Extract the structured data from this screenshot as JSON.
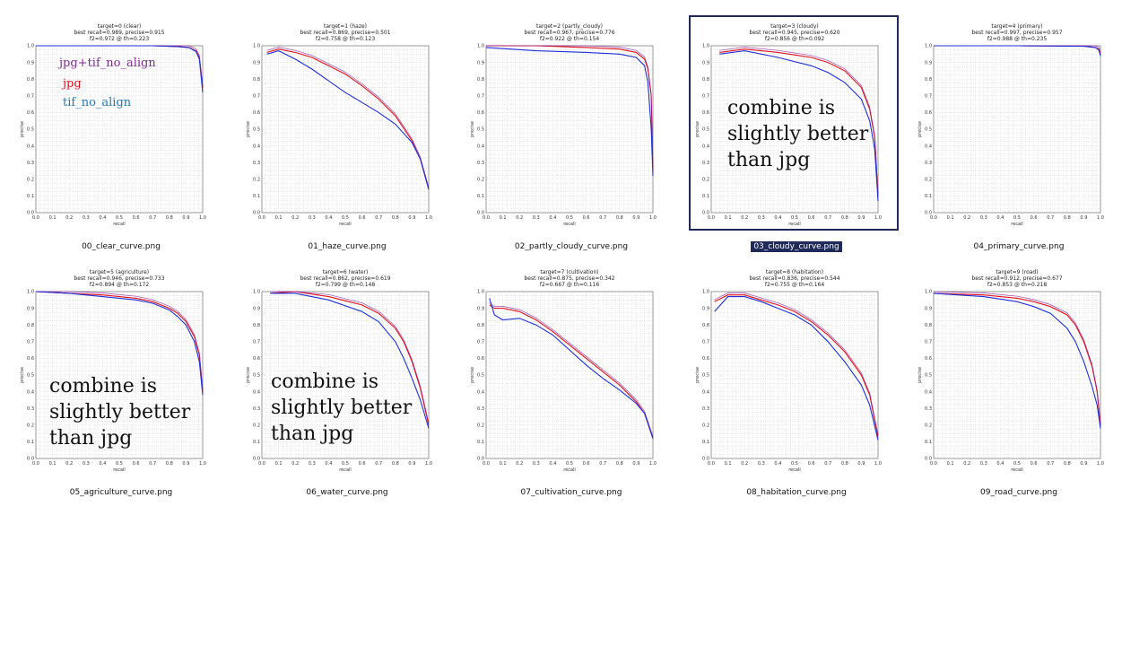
{
  "colors": {
    "jpg": "#e0111c",
    "tif": "#1c2fd8",
    "combined": "#8b1d9a"
  },
  "legend": [
    {
      "label": "jpg+tif_no_align",
      "color": "#7b2d8e"
    },
    {
      "label": "jpg",
      "color": "#e0111c"
    },
    {
      "label": "tif_no_align",
      "color": "#1f77b4"
    }
  ],
  "notes": {
    "n1": "combine is\nslightly better\nthan jpg",
    "n2": "combine is\nslightly better\nthan jpg",
    "n3": "combine is\nslightly better\nthan jpg"
  },
  "tiles": [
    {
      "file": "00_clear_curve.png",
      "title": "target=0 (clear)",
      "line2": "best recall=0.989, precise=0.915",
      "line3": "f2=0.972 @ th=0.223",
      "selected": false
    },
    {
      "file": "01_haze_curve.png",
      "title": "target=1 (haze)",
      "line2": "best recall=0.869, precise=0.501",
      "line3": "f2=0.758 @ th=0.123",
      "selected": false
    },
    {
      "file": "02_partly_cloudy_curve.png",
      "title": "target=2 (partly_cloudy)",
      "line2": "best recall=0.967, precise=0.776",
      "line3": "f2=0.922 @ th=0.154",
      "selected": false
    },
    {
      "file": "03_cloudy_curve.png",
      "title": "target=3 (cloudy)",
      "line2": "best recall=0.945, precise=0.620",
      "line3": "f2=0.856 @ th=0.092",
      "selected": true
    },
    {
      "file": "04_primary_curve.png",
      "title": "target=4 (primary)",
      "line2": "best recall=0.997, precise=0.957",
      "line3": "f2=0.988 @ th=0.235",
      "selected": false
    },
    {
      "file": "05_agriculture_curve.png",
      "title": "target=5 (agriculture)",
      "line2": "best recall=0.946, precise=0.733",
      "line3": "f2=0.894 @ th=0.172",
      "selected": false
    },
    {
      "file": "06_water_curve.png",
      "title": "target=6 (water)",
      "line2": "best recall=0.862, precise=0.619",
      "line3": "f2=0.799 @ th=0.148",
      "selected": false
    },
    {
      "file": "07_cultivation_curve.png",
      "title": "target=7 (cultivation)",
      "line2": "best recall=0.875, precise=0.342",
      "line3": "f2=0.667 @ th=0.116",
      "selected": false
    },
    {
      "file": "08_habitation_curve.png",
      "title": "target=8 (habitation)",
      "line2": "best recall=0.836, precise=0.544",
      "line3": "f2=0.755 @ th=0.164",
      "selected": false
    },
    {
      "file": "09_road_curve.png",
      "title": "target=9 (road)",
      "line2": "best recall=0.912, precise=0.677",
      "line3": "f2=0.853 @ th=0.218",
      "selected": false
    }
  ],
  "axis": {
    "xlabel": "recall",
    "ylabel": "precise",
    "ticks": [
      "0.0",
      "0.1",
      "0.2",
      "0.3",
      "0.4",
      "0.5",
      "0.6",
      "0.7",
      "0.8",
      "0.9",
      "1.0"
    ]
  },
  "chart_data": [
    {
      "type": "line",
      "title": "target=0 (clear)",
      "xlabel": "recall",
      "ylabel": "precise",
      "xlim": [
        0,
        1
      ],
      "ylim": [
        0,
        1
      ],
      "grid": true,
      "series": [
        {
          "values_x": [
            0,
            0.4,
            0.7,
            0.85,
            0.92,
            0.96,
            0.98,
            1.0
          ],
          "values_y": [
            1,
            1,
            1,
            0.995,
            0.99,
            0.97,
            0.93,
            0.75
          ],
          "color": "red"
        },
        {
          "values_x": [
            0,
            0.4,
            0.7,
            0.85,
            0.92,
            0.96,
            0.98,
            1.0
          ],
          "values_y": [
            1,
            1,
            1,
            0.995,
            0.988,
            0.965,
            0.92,
            0.72
          ],
          "color": "blue"
        }
      ]
    },
    {
      "type": "line",
      "title": "target=1 (haze)",
      "xlabel": "recall",
      "ylabel": "precise",
      "xlim": [
        0,
        1
      ],
      "ylim": [
        0,
        1
      ],
      "grid": true,
      "series": [
        {
          "values_x": [
            0.03,
            0.1,
            0.2,
            0.3,
            0.4,
            0.5,
            0.6,
            0.7,
            0.8,
            0.9,
            0.95,
            1.0
          ],
          "values_y": [
            0.96,
            0.98,
            0.96,
            0.93,
            0.88,
            0.83,
            0.76,
            0.68,
            0.58,
            0.43,
            0.32,
            0.14
          ],
          "color": "red"
        },
        {
          "values_x": [
            0.03,
            0.1,
            0.2,
            0.3,
            0.4,
            0.5,
            0.6,
            0.7,
            0.8,
            0.9,
            0.95,
            1.0
          ],
          "values_y": [
            0.95,
            0.97,
            0.92,
            0.86,
            0.79,
            0.72,
            0.66,
            0.6,
            0.53,
            0.42,
            0.32,
            0.14
          ],
          "color": "blue"
        }
      ]
    },
    {
      "type": "line",
      "title": "target=2 (partly_cloudy)",
      "xlabel": "recall",
      "ylabel": "precise",
      "xlim": [
        0,
        1
      ],
      "ylim": [
        0,
        1
      ],
      "grid": true,
      "series": [
        {
          "values_x": [
            0,
            0.3,
            0.6,
            0.8,
            0.9,
            0.95,
            0.97,
            0.99,
            1.0
          ],
          "values_y": [
            1,
            1,
            0.99,
            0.98,
            0.96,
            0.92,
            0.86,
            0.7,
            0.25
          ],
          "color": "red"
        },
        {
          "values_x": [
            0,
            0.3,
            0.6,
            0.8,
            0.9,
            0.95,
            0.97,
            0.99,
            1.0
          ],
          "values_y": [
            0.99,
            0.97,
            0.96,
            0.95,
            0.93,
            0.88,
            0.78,
            0.5,
            0.22
          ],
          "color": "blue"
        }
      ]
    },
    {
      "type": "line",
      "title": "target=3 (cloudy)",
      "xlabel": "recall",
      "ylabel": "precise",
      "xlim": [
        0,
        1
      ],
      "ylim": [
        0,
        1
      ],
      "grid": true,
      "series": [
        {
          "values_x": [
            0.05,
            0.2,
            0.4,
            0.6,
            0.7,
            0.8,
            0.9,
            0.95,
            0.98,
            1.0
          ],
          "values_y": [
            0.96,
            0.98,
            0.96,
            0.93,
            0.9,
            0.85,
            0.75,
            0.62,
            0.45,
            0.1
          ],
          "color": "red"
        },
        {
          "values_x": [
            0.05,
            0.2,
            0.4,
            0.6,
            0.7,
            0.8,
            0.9,
            0.95,
            0.98,
            1.0
          ],
          "values_y": [
            0.95,
            0.97,
            0.93,
            0.88,
            0.84,
            0.78,
            0.68,
            0.55,
            0.38,
            0.07
          ],
          "color": "blue"
        }
      ]
    },
    {
      "type": "line",
      "title": "target=4 (primary)",
      "xlabel": "recall",
      "ylabel": "precise",
      "xlim": [
        0,
        1
      ],
      "ylim": [
        0,
        1
      ],
      "grid": true,
      "series": [
        {
          "values_x": [
            0,
            0.5,
            0.9,
            0.97,
            0.99,
            1.0
          ],
          "values_y": [
            1,
            1,
            0.998,
            0.99,
            0.98,
            0.95
          ],
          "color": "red"
        },
        {
          "values_x": [
            0,
            0.5,
            0.9,
            0.97,
            0.99,
            1.0
          ],
          "values_y": [
            1,
            1,
            0.997,
            0.99,
            0.975,
            0.94
          ],
          "color": "blue"
        }
      ]
    },
    {
      "type": "line",
      "title": "target=5 (agriculture)",
      "xlabel": "recall",
      "ylabel": "precise",
      "xlim": [
        0,
        1
      ],
      "ylim": [
        0,
        1
      ],
      "grid": true,
      "series": [
        {
          "values_x": [
            0,
            0.2,
            0.4,
            0.6,
            0.7,
            0.8,
            0.85,
            0.9,
            0.95,
            0.98,
            1.0
          ],
          "values_y": [
            1,
            0.99,
            0.98,
            0.96,
            0.94,
            0.9,
            0.87,
            0.82,
            0.73,
            0.62,
            0.4
          ],
          "color": "red"
        },
        {
          "values_x": [
            0,
            0.2,
            0.4,
            0.6,
            0.7,
            0.8,
            0.85,
            0.9,
            0.95,
            0.98,
            1.0
          ],
          "values_y": [
            1,
            0.99,
            0.97,
            0.95,
            0.93,
            0.89,
            0.85,
            0.8,
            0.7,
            0.58,
            0.38
          ],
          "color": "blue"
        }
      ]
    },
    {
      "type": "line",
      "title": "target=6 (water)",
      "xlabel": "recall",
      "ylabel": "precise",
      "xlim": [
        0,
        1
      ],
      "ylim": [
        0,
        1
      ],
      "grid": true,
      "series": [
        {
          "values_x": [
            0.05,
            0.2,
            0.4,
            0.6,
            0.7,
            0.8,
            0.85,
            0.9,
            0.95,
            1.0
          ],
          "values_y": [
            0.99,
            1,
            0.97,
            0.92,
            0.87,
            0.78,
            0.7,
            0.58,
            0.42,
            0.2
          ],
          "color": "red"
        },
        {
          "values_x": [
            0.05,
            0.2,
            0.4,
            0.6,
            0.7,
            0.8,
            0.85,
            0.9,
            0.95,
            1.0
          ],
          "values_y": [
            0.99,
            0.99,
            0.95,
            0.88,
            0.82,
            0.7,
            0.6,
            0.48,
            0.35,
            0.18
          ],
          "color": "blue"
        }
      ]
    },
    {
      "type": "line",
      "title": "target=7 (cultivation)",
      "xlabel": "recall",
      "ylabel": "precise",
      "xlim": [
        0,
        1
      ],
      "ylim": [
        0,
        1
      ],
      "grid": true,
      "series": [
        {
          "values_x": [
            0.02,
            0.05,
            0.1,
            0.2,
            0.3,
            0.4,
            0.5,
            0.6,
            0.7,
            0.8,
            0.9,
            0.95,
            1.0
          ],
          "values_y": [
            0.92,
            0.9,
            0.9,
            0.88,
            0.83,
            0.76,
            0.68,
            0.6,
            0.52,
            0.44,
            0.34,
            0.27,
            0.12
          ],
          "color": "red"
        },
        {
          "values_x": [
            0.02,
            0.05,
            0.1,
            0.2,
            0.3,
            0.4,
            0.5,
            0.6,
            0.7,
            0.8,
            0.9,
            0.95,
            1.0
          ],
          "values_y": [
            0.96,
            0.86,
            0.83,
            0.84,
            0.8,
            0.74,
            0.65,
            0.56,
            0.48,
            0.41,
            0.33,
            0.27,
            0.12
          ],
          "color": "blue"
        }
      ]
    },
    {
      "type": "line",
      "title": "target=8 (habitation)",
      "xlabel": "recall",
      "ylabel": "precise",
      "xlim": [
        0,
        1
      ],
      "ylim": [
        0,
        1
      ],
      "grid": true,
      "series": [
        {
          "values_x": [
            0.02,
            0.1,
            0.2,
            0.3,
            0.4,
            0.5,
            0.6,
            0.7,
            0.8,
            0.9,
            0.95,
            1.0
          ],
          "values_y": [
            0.94,
            0.98,
            0.98,
            0.95,
            0.92,
            0.88,
            0.82,
            0.74,
            0.64,
            0.5,
            0.38,
            0.13
          ],
          "color": "red"
        },
        {
          "values_x": [
            0.02,
            0.1,
            0.2,
            0.3,
            0.4,
            0.5,
            0.6,
            0.7,
            0.8,
            0.9,
            0.95,
            1.0
          ],
          "values_y": [
            0.88,
            0.97,
            0.97,
            0.94,
            0.9,
            0.86,
            0.8,
            0.7,
            0.58,
            0.44,
            0.32,
            0.11
          ],
          "color": "blue"
        }
      ]
    },
    {
      "type": "line",
      "title": "target=9 (road)",
      "xlabel": "recall",
      "ylabel": "precise",
      "xlim": [
        0,
        1
      ],
      "ylim": [
        0,
        1
      ],
      "grid": true,
      "series": [
        {
          "values_x": [
            0,
            0.3,
            0.5,
            0.6,
            0.7,
            0.8,
            0.85,
            0.9,
            0.95,
            0.98,
            1.0
          ],
          "values_y": [
            0.99,
            0.98,
            0.96,
            0.94,
            0.91,
            0.86,
            0.8,
            0.7,
            0.55,
            0.4,
            0.2
          ],
          "color": "red"
        },
        {
          "values_x": [
            0,
            0.3,
            0.5,
            0.6,
            0.7,
            0.8,
            0.85,
            0.9,
            0.95,
            0.98,
            1.0
          ],
          "values_y": [
            0.99,
            0.97,
            0.94,
            0.91,
            0.87,
            0.78,
            0.7,
            0.58,
            0.43,
            0.32,
            0.18
          ],
          "color": "blue"
        }
      ]
    }
  ]
}
